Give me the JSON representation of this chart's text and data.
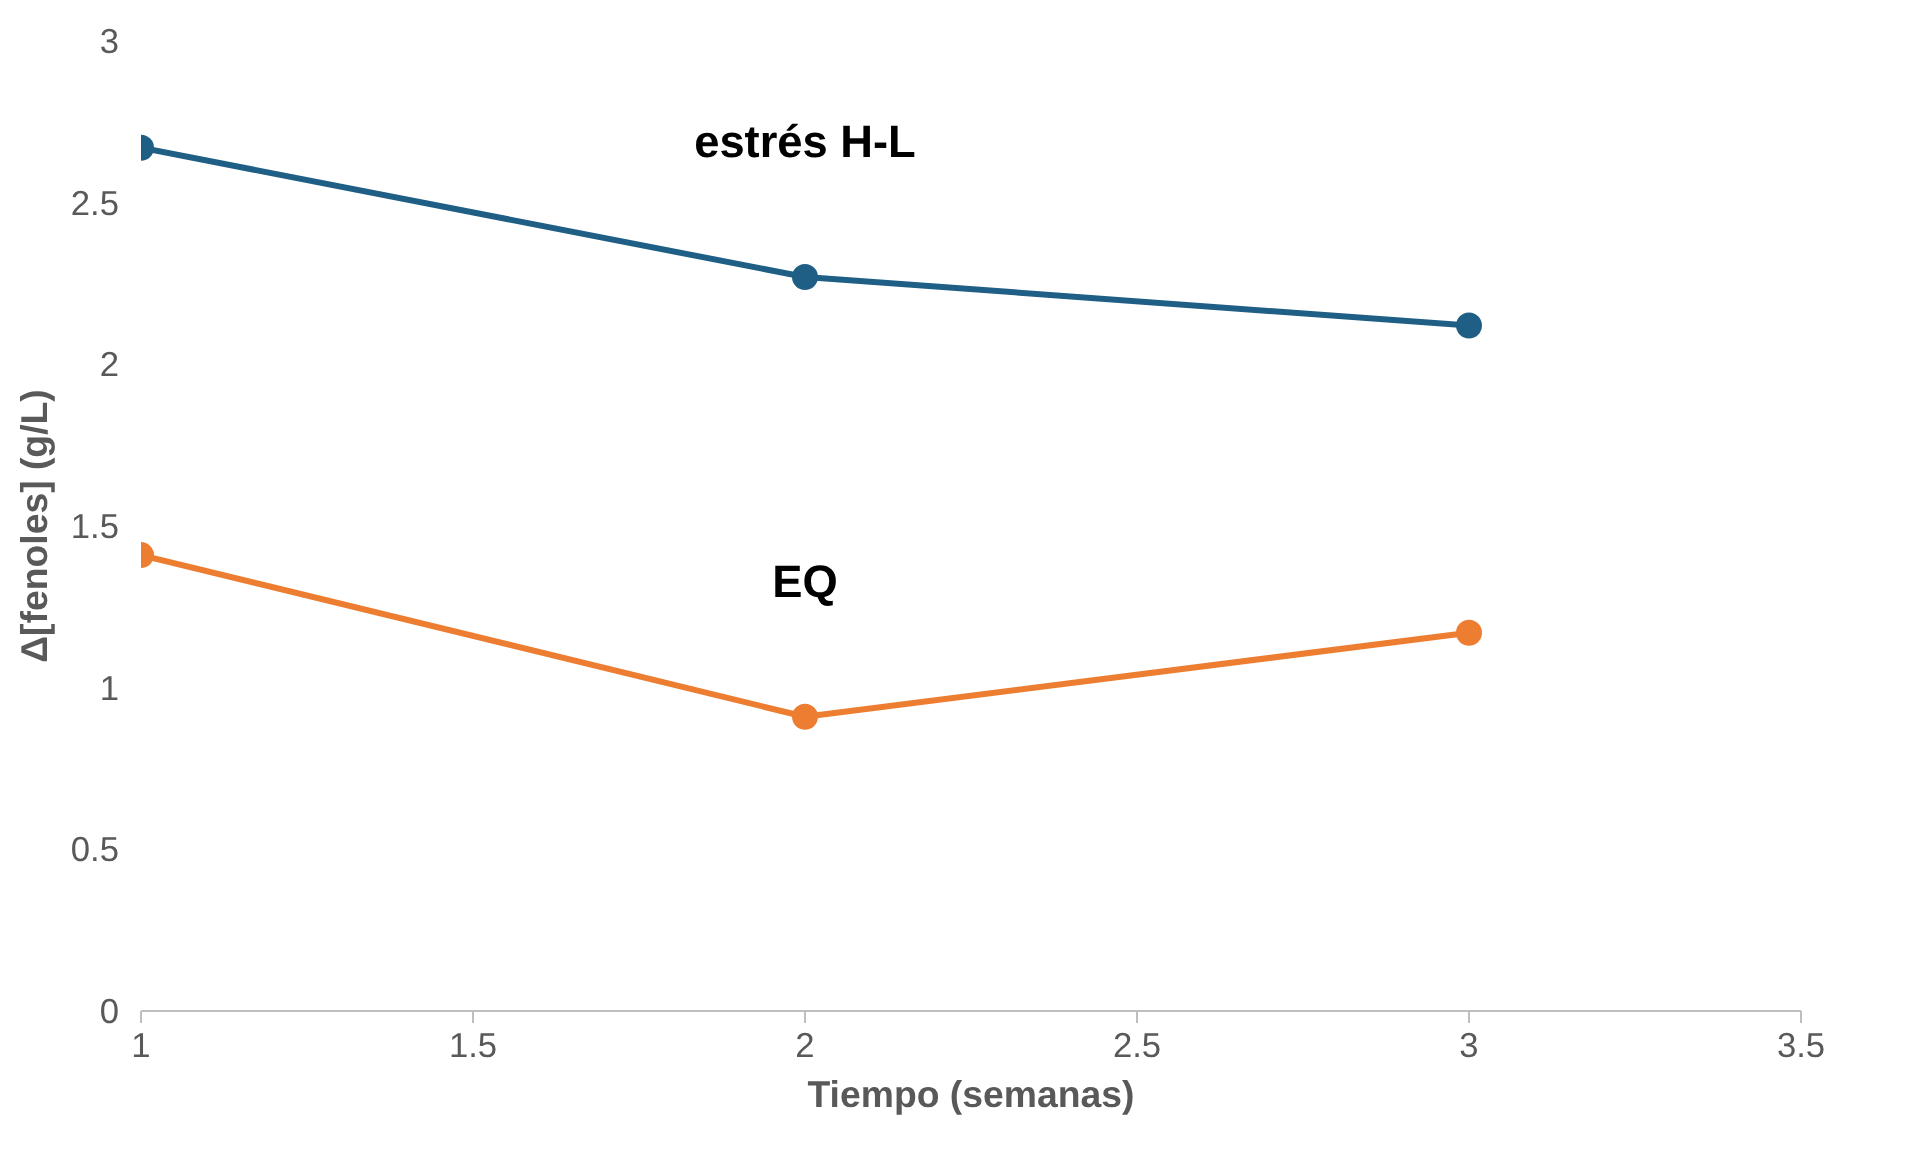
{
  "chart_data": {
    "type": "line",
    "xlabel": "Tiempo (semanas)",
    "ylabel": "Δ[fenoles] (g/L)",
    "xlim": [
      1,
      3.5
    ],
    "xticks": [
      1,
      1.5,
      2,
      2.5,
      3,
      3.5
    ],
    "ylim": [
      0,
      3
    ],
    "yticks": [
      0,
      0.5,
      1,
      1.5,
      2,
      2.5,
      3
    ],
    "x": [
      1,
      2,
      3
    ],
    "series": [
      {
        "name": "estrés H-L",
        "color": "#1f5f85",
        "values": [
          2.67,
          2.27,
          2.12
        ]
      },
      {
        "name": "EQ",
        "color": "#ed7d31",
        "values": [
          1.41,
          0.91,
          1.17
        ]
      }
    ],
    "marker": "circle",
    "grid": false
  }
}
